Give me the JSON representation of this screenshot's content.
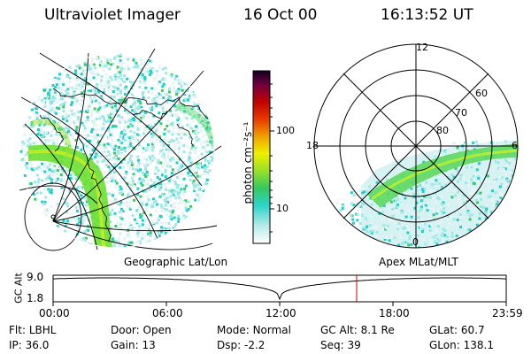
{
  "header": {
    "instrument": "Ultraviolet Imager",
    "date": "16 Oct 00",
    "time": "16:13:52 UT"
  },
  "left_map": {
    "label": "Geographic Lat/Lon"
  },
  "right_map": {
    "label": "Apex MLat/MLT",
    "mlt_labels": [
      "12",
      "18",
      "6",
      "0"
    ],
    "lat_labels": [
      "60",
      "70",
      "80"
    ]
  },
  "colorbar": {
    "label": "photon cm⁻²s⁻¹",
    "ticks": [
      "100",
      "10"
    ],
    "stops": [
      "#e8f4f4",
      "#9ee8e8",
      "#1fd0c8",
      "#3cc860",
      "#98e028",
      "#f0f000",
      "#f0a800",
      "#e84000",
      "#c00000",
      "#780040",
      "#180028"
    ]
  },
  "timeline": {
    "axis_label": "GC Alt",
    "y_ticks": [
      "9.0",
      "1.8"
    ],
    "x_ticks": [
      "00:00",
      "06:00",
      "12:00",
      "18:00",
      "23:59"
    ],
    "marker_color": "#cc0000"
  },
  "status": {
    "row1": [
      {
        "key": "Flt:",
        "value": "LBHL"
      },
      {
        "key": "Door:",
        "value": "Open"
      },
      {
        "key": "Mode:",
        "value": "Normal"
      },
      {
        "key": "GC Alt:",
        "value": "8.1 Re"
      },
      {
        "key": "GLat:",
        "value": "60.7"
      }
    ],
    "row2": [
      {
        "key": "IP:",
        "value": "36.0"
      },
      {
        "key": "Gain:",
        "value": "13"
      },
      {
        "key": "Dsp:",
        "value": "-2.2"
      },
      {
        "key": "Seq:",
        "value": "39"
      },
      {
        "key": "GLon:",
        "value": "138.1"
      }
    ]
  }
}
